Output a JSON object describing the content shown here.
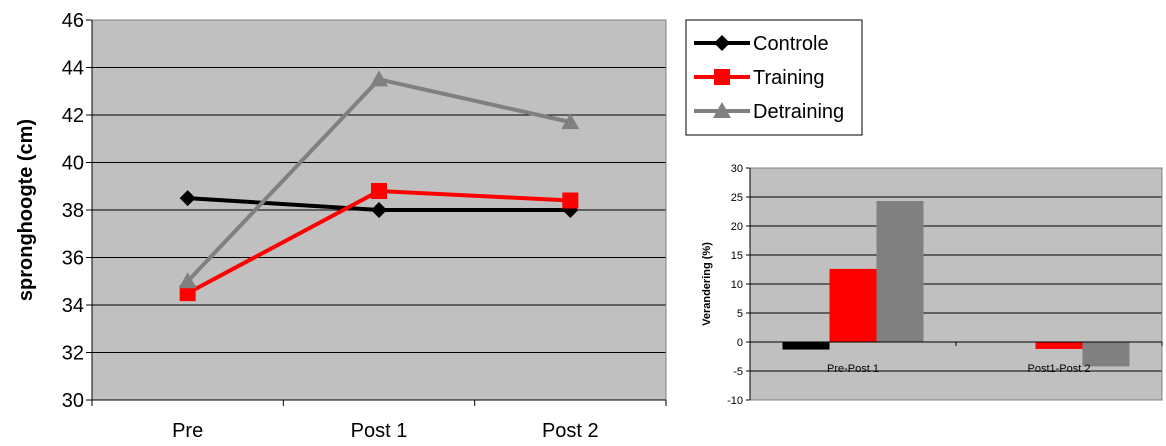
{
  "chart_data": [
    {
      "type": "line",
      "categories": [
        "Pre",
        "Post 1",
        "Post 2"
      ],
      "ylabel": "spronghoogte (cm)",
      "xlabel": "",
      "ylim": [
        30,
        46
      ],
      "yticks": [
        30,
        32,
        34,
        36,
        38,
        40,
        42,
        44,
        46
      ],
      "grid": "horizontal",
      "legend_position": "top-right",
      "series": [
        {
          "name": "Controle",
          "values": [
            38.5,
            38.0,
            38.0
          ],
          "color": "#000000",
          "marker": "diamond"
        },
        {
          "name": "Training",
          "values": [
            34.5,
            38.8,
            38.4
          ],
          "color": "#ff0000",
          "marker": "square"
        },
        {
          "name": "Detraining",
          "values": [
            35.0,
            43.5,
            41.7
          ],
          "color": "#808080",
          "marker": "triangle"
        }
      ]
    },
    {
      "type": "bar",
      "categories": [
        "Pre-Post 1",
        "Post1-Post 2"
      ],
      "ylabel": "Verandering (%)",
      "xlabel": "",
      "ylim": [
        -10,
        30
      ],
      "yticks": [
        -10,
        -5,
        0,
        5,
        10,
        15,
        20,
        25,
        30
      ],
      "grid": "horizontal",
      "series": [
        {
          "values": [
            -1.3,
            0.0
          ],
          "color": "#000000"
        },
        {
          "values": [
            12.6,
            -1.2
          ],
          "color": "#ff0000"
        },
        {
          "values": [
            24.3,
            -4.2
          ],
          "color": "#808080"
        }
      ]
    }
  ]
}
